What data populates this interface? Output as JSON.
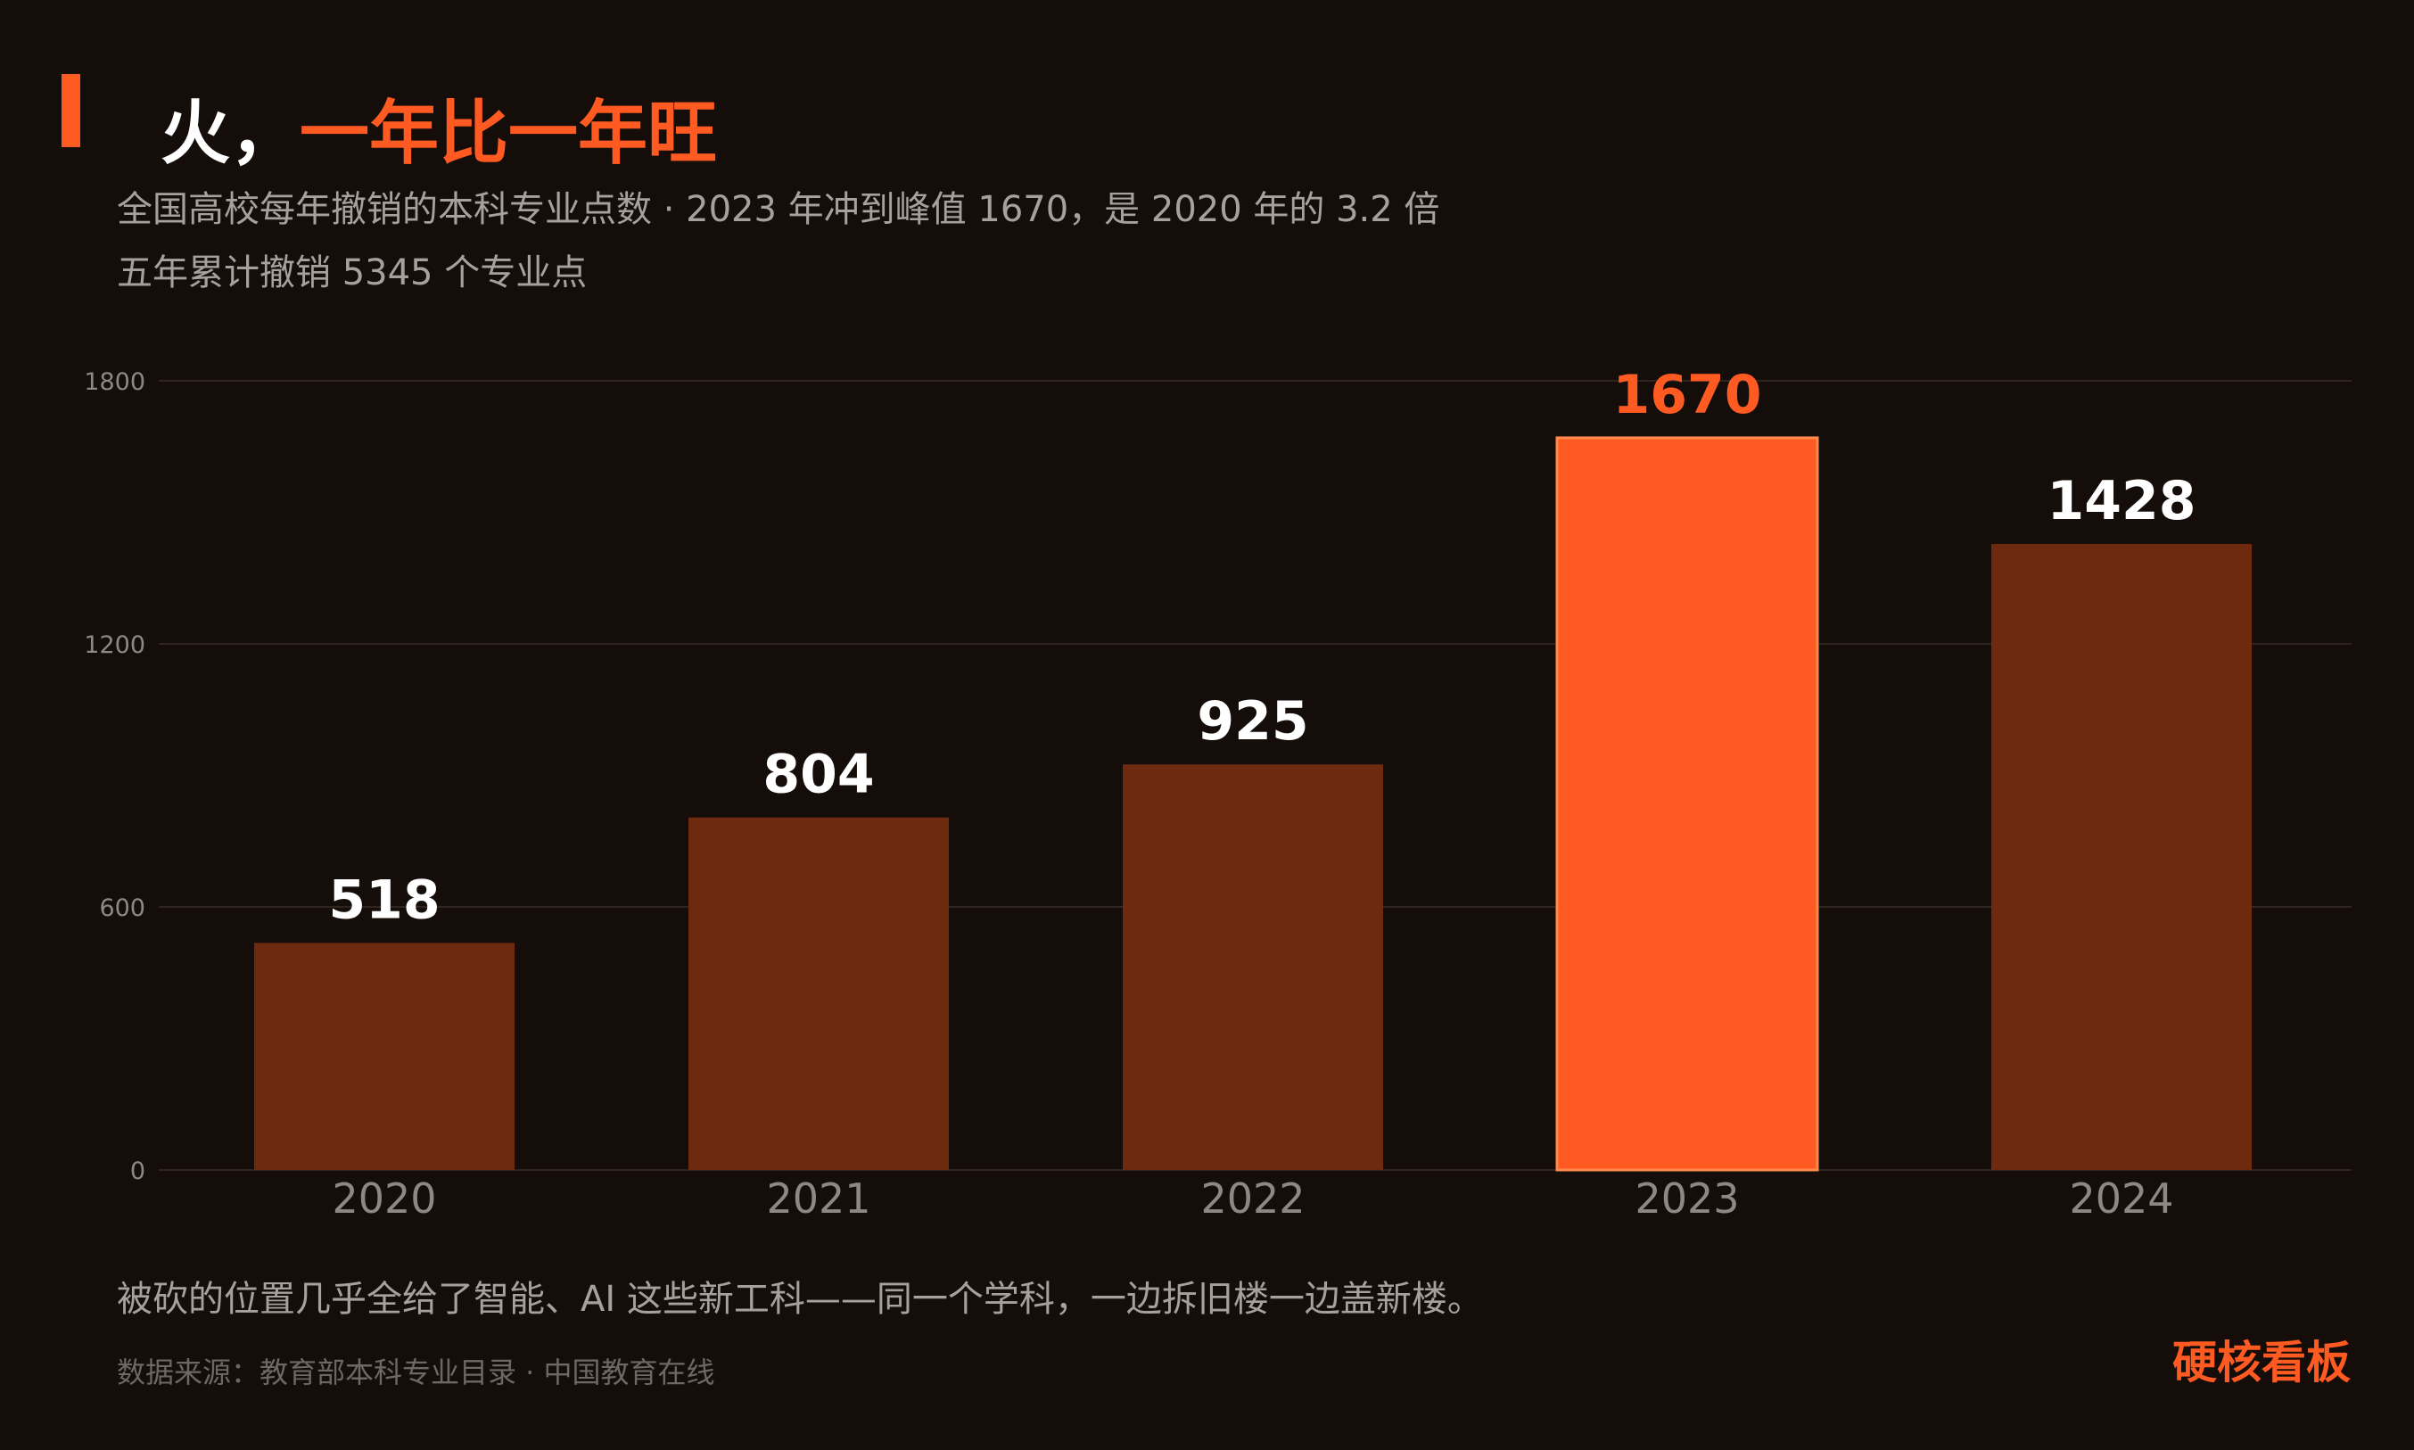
{
  "header": {
    "title_part1": "火，",
    "title_part2": "一年比一年旺",
    "subtitle_line1": "全国高校每年撤销的本科专业点数 · 2023 年冲到峰值 1670，是 2020 年的 3.2 倍",
    "subtitle_line2": "五年累计撤销 5345 个专业点"
  },
  "footer": {
    "note": "被砍的位置几乎全给了智能、AI 这些新工科——同一个学科，一边拆旧楼一边盖新楼。",
    "source": "数据来源：教育部本科专业目录 · 中国教育在线",
    "brand": "硬核看板"
  },
  "colors": {
    "background": "#140d09",
    "accent": "#ff5a21",
    "bar": "#6e2a0f",
    "highlight_bar": "#ff5a21",
    "gridline": "#2e2520",
    "axis_text": "#8f8882",
    "label_text": "#ffffff"
  },
  "chart_data": {
    "type": "bar",
    "categories": [
      "2020",
      "2021",
      "2022",
      "2023",
      "2024"
    ],
    "values": [
      518,
      804,
      925,
      1670,
      1428
    ],
    "highlight_index": 3,
    "ylim": [
      0,
      1800
    ],
    "yticks": [
      0,
      600,
      1200,
      1800
    ],
    "grid": true,
    "xlabel": "",
    "ylabel": ""
  }
}
